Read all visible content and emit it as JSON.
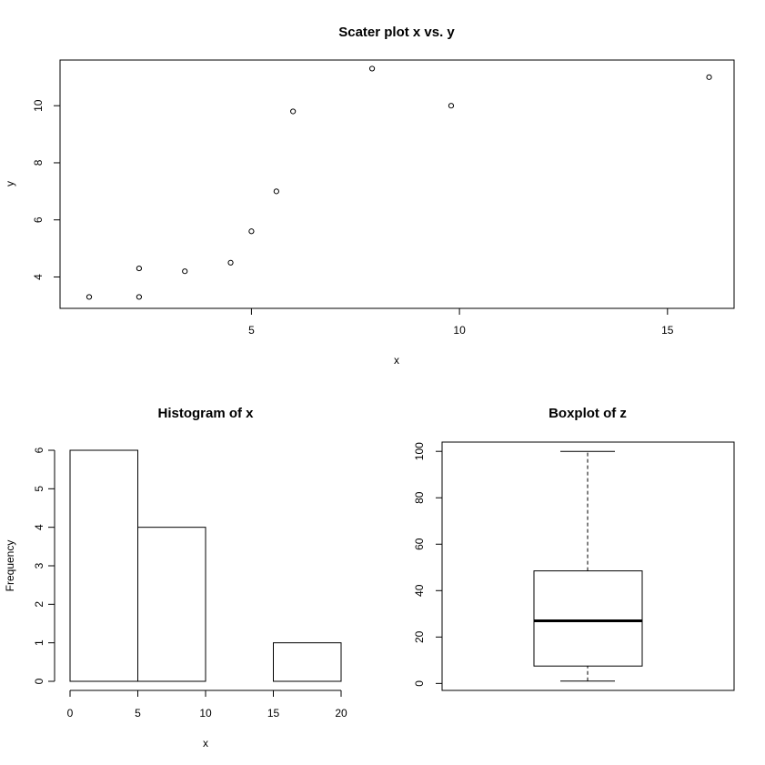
{
  "chart_data": [
    {
      "type": "scatter",
      "title": "Scater plot x vs. y",
      "xlabel": "x",
      "ylabel": "y",
      "xlim": [
        0.4,
        16.6
      ],
      "ylim": [
        2.9,
        11.6
      ],
      "xticks": [
        5,
        10,
        15
      ],
      "yticks": [
        4,
        6,
        8,
        10
      ],
      "points": [
        {
          "x": 1.1,
          "y": 3.3
        },
        {
          "x": 2.3,
          "y": 4.3
        },
        {
          "x": 2.3,
          "y": 3.3
        },
        {
          "x": 3.4,
          "y": 4.2
        },
        {
          "x": 4.5,
          "y": 4.5
        },
        {
          "x": 5.0,
          "y": 5.6
        },
        {
          "x": 5.6,
          "y": 7.0
        },
        {
          "x": 6.0,
          "y": 9.8
        },
        {
          "x": 7.9,
          "y": 11.3
        },
        {
          "x": 9.8,
          "y": 10.0
        },
        {
          "x": 16.0,
          "y": 11.0
        }
      ],
      "grid": false,
      "legend": "none"
    },
    {
      "type": "bar",
      "subtype": "histogram",
      "title": "Histogram of x",
      "xlabel": "x",
      "ylabel": "Frequency",
      "bins": [
        {
          "from": 0,
          "to": 5,
          "count": 6
        },
        {
          "from": 5,
          "to": 10,
          "count": 4
        },
        {
          "from": 10,
          "to": 15,
          "count": 0
        },
        {
          "from": 15,
          "to": 20,
          "count": 1
        }
      ],
      "xlim": [
        0,
        20
      ],
      "ylim": [
        0,
        6
      ],
      "xticks": [
        0,
        5,
        10,
        15,
        20
      ],
      "yticks": [
        0,
        1,
        2,
        3,
        4,
        5,
        6
      ],
      "grid": false,
      "legend": "none"
    },
    {
      "type": "boxplot",
      "title": "Boxplot of z",
      "xlabel": "",
      "ylabel": "",
      "stats": {
        "min": 1,
        "q1": 7.5,
        "median": 27,
        "q3": 48.5,
        "max": 100
      },
      "ylim": [
        -3,
        104
      ],
      "yticks": [
        0,
        20,
        40,
        60,
        80,
        100
      ],
      "grid": false,
      "legend": "none"
    }
  ]
}
